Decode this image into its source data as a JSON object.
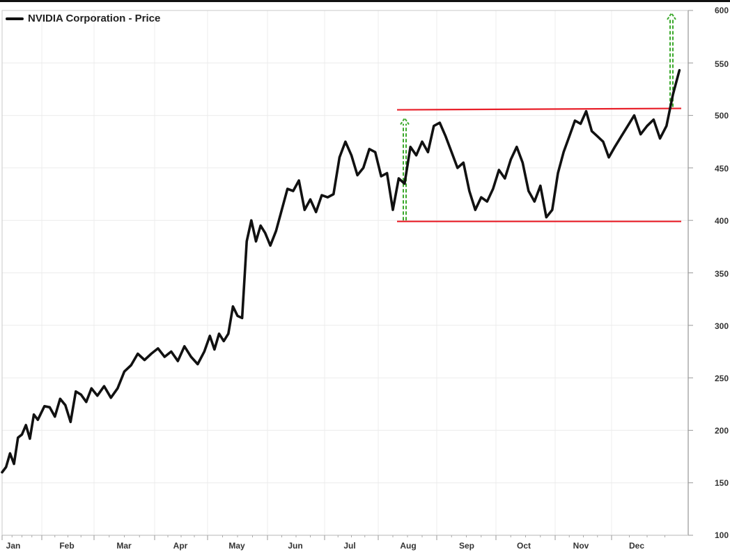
{
  "chart_data": {
    "type": "line",
    "title": "NVIDIA Corporation - Price",
    "xlabel": "",
    "ylabel": "",
    "ylim": [
      100,
      600
    ],
    "grid": true,
    "legend_position": "top-left",
    "y_axis_side": "right",
    "y_ticks": [
      100,
      150,
      200,
      250,
      300,
      350,
      400,
      450,
      500,
      550,
      600
    ],
    "x_ticks": [
      "Jan",
      "Feb",
      "Mar",
      "Apr",
      "May",
      "Jun",
      "Jul",
      "Aug",
      "Sep",
      "Oct",
      "Nov",
      "Dec"
    ],
    "series": [
      {
        "name": "NVIDIA Corporation - Price",
        "color": "#111111",
        "points": [
          [
            "Jan",
            160
          ],
          [
            "Jan",
            165
          ],
          [
            "Jan",
            178
          ],
          [
            "Jan",
            168
          ],
          [
            "Jan",
            193
          ],
          [
            "Jan",
            196
          ],
          [
            "Jan",
            205
          ],
          [
            "Jan",
            192
          ],
          [
            "Jan",
            215
          ],
          [
            "Jan",
            210
          ],
          [
            "Feb",
            223
          ],
          [
            "Feb",
            222
          ],
          [
            "Feb",
            213
          ],
          [
            "Feb",
            230
          ],
          [
            "Feb",
            224
          ],
          [
            "Feb",
            208
          ],
          [
            "Feb",
            237
          ],
          [
            "Feb",
            234
          ],
          [
            "Feb",
            227
          ],
          [
            "Feb",
            240
          ],
          [
            "Mar",
            233
          ],
          [
            "Mar",
            242
          ],
          [
            "Mar",
            231
          ],
          [
            "Mar",
            240
          ],
          [
            "Mar",
            256
          ],
          [
            "Mar",
            262
          ],
          [
            "Mar",
            273
          ],
          [
            "Mar",
            267
          ],
          [
            "Mar",
            273
          ],
          [
            "Apr",
            278
          ],
          [
            "Apr",
            270
          ],
          [
            "Apr",
            275
          ],
          [
            "Apr",
            266
          ],
          [
            "Apr",
            280
          ],
          [
            "Apr",
            270
          ],
          [
            "Apr",
            263
          ],
          [
            "Apr",
            275
          ],
          [
            "May",
            290
          ],
          [
            "May",
            277
          ],
          [
            "May",
            292
          ],
          [
            "May",
            285
          ],
          [
            "May",
            292
          ],
          [
            "May",
            318
          ],
          [
            "May",
            309
          ],
          [
            "May",
            307
          ],
          [
            "May",
            380
          ],
          [
            "May",
            400
          ],
          [
            "May",
            380
          ],
          [
            "May",
            395
          ],
          [
            "May",
            388
          ],
          [
            "Jun",
            376
          ],
          [
            "Jun",
            390
          ],
          [
            "Jun",
            410
          ],
          [
            "Jun",
            430
          ],
          [
            "Jun",
            428
          ],
          [
            "Jun",
            438
          ],
          [
            "Jun",
            410
          ],
          [
            "Jun",
            420
          ],
          [
            "Jun",
            408
          ],
          [
            "Jun",
            424
          ],
          [
            "Jul",
            422
          ],
          [
            "Jul",
            425
          ],
          [
            "Jul",
            460
          ],
          [
            "Jul",
            475
          ],
          [
            "Jul",
            462
          ],
          [
            "Jul",
            443
          ],
          [
            "Jul",
            450
          ],
          [
            "Jul",
            468
          ],
          [
            "Jul",
            465
          ],
          [
            "Aug",
            442
          ],
          [
            "Aug",
            445
          ],
          [
            "Aug",
            410
          ],
          [
            "Aug",
            440
          ],
          [
            "Aug",
            435
          ],
          [
            "Aug",
            470
          ],
          [
            "Aug",
            462
          ],
          [
            "Aug",
            475
          ],
          [
            "Aug",
            465
          ],
          [
            "Aug",
            490
          ],
          [
            "Sep",
            493
          ],
          [
            "Sep",
            480
          ],
          [
            "Sep",
            465
          ],
          [
            "Sep",
            450
          ],
          [
            "Sep",
            455
          ],
          [
            "Sep",
            428
          ],
          [
            "Sep",
            410
          ],
          [
            "Sep",
            422
          ],
          [
            "Sep",
            418
          ],
          [
            "Sep",
            430
          ],
          [
            "Oct",
            448
          ],
          [
            "Oct",
            440
          ],
          [
            "Oct",
            458
          ],
          [
            "Oct",
            470
          ],
          [
            "Oct",
            455
          ],
          [
            "Oct",
            428
          ],
          [
            "Oct",
            418
          ],
          [
            "Oct",
            433
          ],
          [
            "Oct",
            403
          ],
          [
            "Oct",
            410
          ],
          [
            "Nov",
            445
          ],
          [
            "Nov",
            465
          ],
          [
            "Nov",
            480
          ],
          [
            "Nov",
            495
          ],
          [
            "Nov",
            492
          ],
          [
            "Nov",
            504
          ],
          [
            "Nov",
            485
          ],
          [
            "Nov",
            480
          ],
          [
            "Nov",
            475
          ],
          [
            "Nov",
            460
          ],
          [
            "Dec",
            470
          ],
          [
            "Dec",
            480
          ],
          [
            "Dec",
            490
          ],
          [
            "Dec",
            500
          ],
          [
            "Dec",
            482
          ],
          [
            "Dec",
            490
          ],
          [
            "Dec",
            496
          ],
          [
            "Dec",
            478
          ],
          [
            "Dec",
            490
          ],
          [
            "Dec",
            520
          ],
          [
            "Dec",
            543
          ]
        ]
      }
    ],
    "annotations": [
      {
        "type": "horizontal-line",
        "label": "resistance",
        "color": "#e8202a",
        "value": 506,
        "from": "Aug",
        "to": "Dec-end"
      },
      {
        "type": "horizontal-line",
        "label": "support",
        "color": "#e8202a",
        "value": 399,
        "from": "Aug",
        "to": "Dec-end"
      },
      {
        "type": "dashed-arrow",
        "label": "range-height",
        "color": "#3aa82a",
        "from_value": 400,
        "to_value": 500,
        "at": "Aug"
      },
      {
        "type": "dashed-arrow",
        "label": "breakout-target",
        "color": "#3aa82a",
        "from_value": 508,
        "to_value": 600,
        "at": "Dec-end"
      }
    ]
  },
  "legend": {
    "label": "NVIDIA Corporation - Price"
  },
  "axis": {
    "y": [
      "600",
      "550",
      "500",
      "450",
      "400",
      "350",
      "300",
      "250",
      "200",
      "150",
      "100"
    ],
    "x": [
      "Jan",
      "Feb",
      "Mar",
      "Apr",
      "May",
      "Jun",
      "Jul",
      "Aug",
      "Sep",
      "Oct",
      "Nov",
      "Dec"
    ]
  },
  "colors": {
    "line": "#111111",
    "channel": "#e8202a",
    "arrow": "#3aa82a",
    "grid": "#ececec",
    "axis": "#aaaaaa"
  }
}
